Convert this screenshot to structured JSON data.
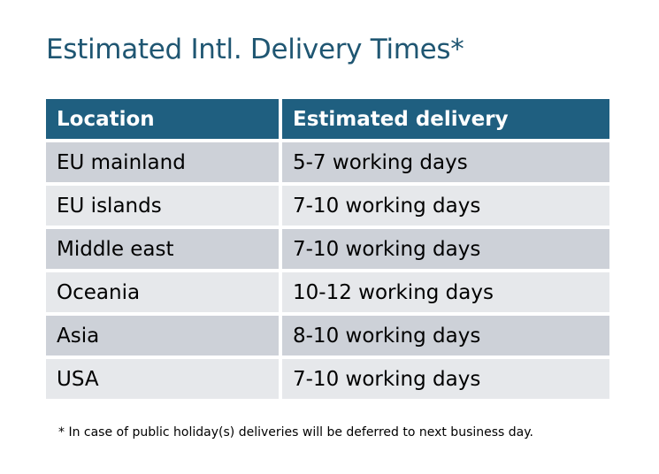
{
  "title": "Estimated Intl. Delivery Times*",
  "table": {
    "headers": [
      "Location",
      "Estimated delivery"
    ],
    "rows": [
      [
        "EU mainland",
        "5-7 working days"
      ],
      [
        "EU islands",
        "7-10 working days"
      ],
      [
        "Middle east",
        "7-10 working days"
      ],
      [
        "Oceania",
        "10-12 working days"
      ],
      [
        "Asia",
        "8-10 working days"
      ],
      [
        "USA",
        "7-10 working days"
      ]
    ]
  },
  "footnote": "* In case of public holiday(s) deliveries will be deferred to next business day.",
  "colors": {
    "header": "#1F5F80",
    "row_dark": "#CDD1D8",
    "row_light": "#E6E8EB",
    "title": "#1F5672"
  }
}
